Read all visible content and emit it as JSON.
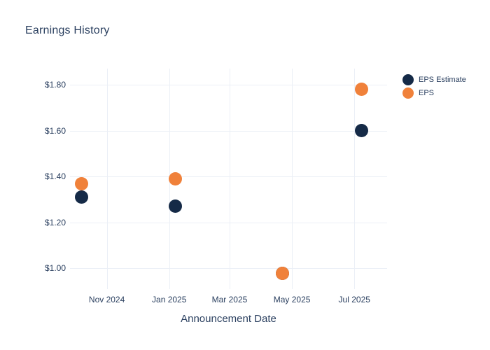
{
  "chart": {
    "title": "Earnings History",
    "x_axis_title": "Announcement Date"
  },
  "colors": {
    "background": "#ffffff",
    "text": "#2a3f5f",
    "grid": "#ebeff6",
    "eps_estimate": "#152a47",
    "eps": "#f0813a"
  },
  "legend": {
    "items": [
      {
        "label": "EPS Estimate",
        "color": "#152a47"
      },
      {
        "label": "EPS",
        "color": "#f0813a"
      }
    ]
  },
  "chart_data": {
    "type": "scatter",
    "title": "Earnings History",
    "xlabel": "Announcement Date",
    "ylabel": "",
    "grid": true,
    "legend_position": "right",
    "x_range": [
      "2024-09-26",
      "2025-08-02"
    ],
    "y_range": [
      0.91,
      1.87
    ],
    "marker_size": 19,
    "x_ticks": [
      {
        "date": "2024-11-01",
        "label": "Nov 2024"
      },
      {
        "date": "2025-01-01",
        "label": "Jan 2025"
      },
      {
        "date": "2025-03-01",
        "label": "Mar 2025"
      },
      {
        "date": "2025-05-01",
        "label": "May 2025"
      },
      {
        "date": "2025-07-01",
        "label": "Jul 2025"
      }
    ],
    "y_ticks": [
      {
        "value": 1.0,
        "label": "$1.00"
      },
      {
        "value": 1.2,
        "label": "$1.20"
      },
      {
        "value": 1.4,
        "label": "$1.40"
      },
      {
        "value": 1.6,
        "label": "$1.60"
      },
      {
        "value": 1.8,
        "label": "$1.80"
      }
    ],
    "series": [
      {
        "name": "EPS Estimate",
        "color": "#152a47",
        "points": [
          {
            "date": "2024-10-07",
            "value": 1.31
          },
          {
            "date": "2025-01-07",
            "value": 1.27
          },
          {
            "date": "2025-04-22",
            "value": 0.98
          },
          {
            "date": "2025-07-08",
            "value": 1.6
          }
        ]
      },
      {
        "name": "EPS",
        "color": "#f0813a",
        "points": [
          {
            "date": "2024-10-07",
            "value": 1.37
          },
          {
            "date": "2025-01-07",
            "value": 1.39
          },
          {
            "date": "2025-04-22",
            "value": 0.98
          },
          {
            "date": "2025-07-08",
            "value": 1.78
          }
        ]
      }
    ]
  }
}
